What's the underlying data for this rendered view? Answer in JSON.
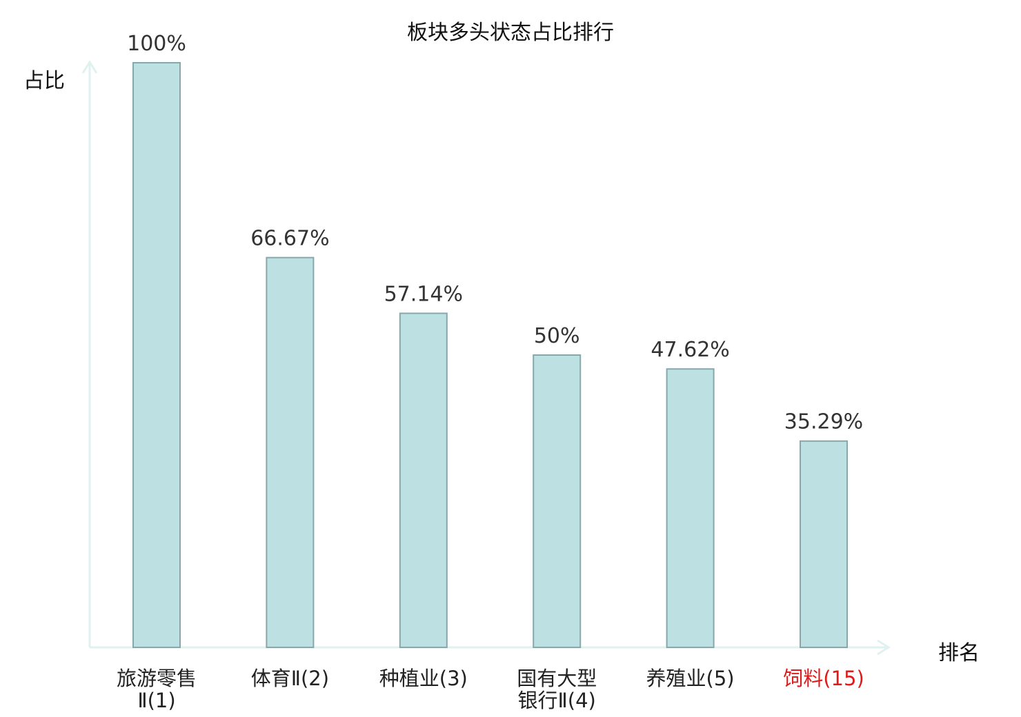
{
  "chart_data": {
    "type": "bar",
    "title": "板块多头状态占比排行",
    "xlabel": "排名",
    "ylabel": "占比",
    "ylim": [
      0,
      100
    ],
    "grid": false,
    "categories": [
      {
        "name": "旅游零售",
        "rank": "Ⅱ(1)",
        "lines": [
          "旅游零售",
          "Ⅱ(1)"
        ],
        "highlight": false
      },
      {
        "name": "体育Ⅱ",
        "rank": "(2)",
        "lines": [
          "体育Ⅱ(2)"
        ],
        "highlight": false
      },
      {
        "name": "种植业",
        "rank": "(3)",
        "lines": [
          "种植业(3)"
        ],
        "highlight": false
      },
      {
        "name": "国有大型银行Ⅱ",
        "rank": "(4)",
        "lines": [
          "国有大型",
          "银行Ⅱ(4)"
        ],
        "highlight": false
      },
      {
        "name": "养殖业",
        "rank": "(5)",
        "lines": [
          "养殖业(5)"
        ],
        "highlight": false
      },
      {
        "name": "饲料",
        "rank": "(15)",
        "lines": [
          "饲料(15)"
        ],
        "highlight": true
      }
    ],
    "values": [
      100,
      66.67,
      57.14,
      50,
      47.62,
      35.29
    ],
    "value_labels": [
      "100%",
      "66.67%",
      "57.14%",
      "50%",
      "47.62%",
      "35.29%"
    ],
    "colors": {
      "bar_fill": "#bde0e3",
      "bar_stroke": "#86a8ab",
      "axis": "#dff2ef",
      "highlight_text": "#e01a1a",
      "text": "#222222"
    }
  }
}
